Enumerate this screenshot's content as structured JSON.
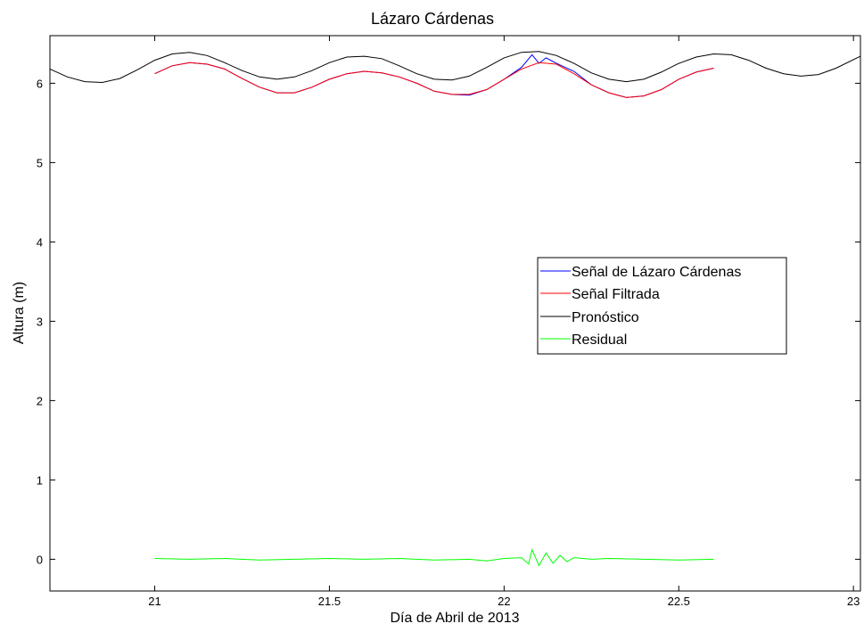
{
  "chart_data": {
    "type": "line",
    "title": "Lázaro Cárdenas",
    "xlabel": "Día de Abril de 2013",
    "ylabel": "Altura (m)",
    "xlim": [
      20.7,
      23.02
    ],
    "ylim": [
      -0.4,
      6.6
    ],
    "xticks": [
      21,
      21.5,
      22,
      22.5,
      23
    ],
    "xtick_labels": [
      "21",
      "21.5",
      "22",
      "22.5",
      "23"
    ],
    "yticks": [
      0,
      1,
      2,
      3,
      4,
      5,
      6
    ],
    "ytick_labels": [
      "0",
      "1",
      "2",
      "3",
      "4",
      "5",
      "6"
    ],
    "grid": false,
    "legend_position": "right",
    "colors": {
      "signal": "#0000ff",
      "filtered": "#ff0000",
      "forecast": "#000000",
      "residual": "#00ff00"
    },
    "series": [
      {
        "name": "Señal de Lázaro Cárdenas",
        "color": "#0000ff",
        "x": [
          21.0,
          21.05,
          21.1,
          21.15,
          21.2,
          21.25,
          21.3,
          21.35,
          21.4,
          21.45,
          21.5,
          21.55,
          21.6,
          21.65,
          21.7,
          21.75,
          21.8,
          21.85,
          21.9,
          21.95,
          22.0,
          22.05,
          22.08,
          22.1,
          22.12,
          22.15,
          22.2,
          22.25,
          22.3,
          22.35,
          22.4,
          22.45,
          22.5,
          22.55,
          22.6
        ],
        "y": [
          6.12,
          6.22,
          6.26,
          6.24,
          6.18,
          6.06,
          5.95,
          5.88,
          5.88,
          5.95,
          6.05,
          6.12,
          6.15,
          6.13,
          6.08,
          6.0,
          5.9,
          5.86,
          5.85,
          5.92,
          6.05,
          6.2,
          6.36,
          6.25,
          6.32,
          6.25,
          6.15,
          5.98,
          5.88,
          5.82,
          5.84,
          5.92,
          6.05,
          6.14,
          6.19
        ]
      },
      {
        "name": "Señal Filtrada",
        "color": "#ff0000",
        "x": [
          21.0,
          21.05,
          21.1,
          21.15,
          21.2,
          21.25,
          21.3,
          21.35,
          21.4,
          21.45,
          21.5,
          21.55,
          21.6,
          21.65,
          21.7,
          21.75,
          21.8,
          21.85,
          21.9,
          21.95,
          22.0,
          22.05,
          22.1,
          22.15,
          22.2,
          22.25,
          22.3,
          22.35,
          22.4,
          22.45,
          22.5,
          22.55,
          22.6
        ],
        "y": [
          6.12,
          6.22,
          6.26,
          6.24,
          6.18,
          6.06,
          5.95,
          5.88,
          5.88,
          5.95,
          6.05,
          6.12,
          6.15,
          6.13,
          6.08,
          6.0,
          5.9,
          5.86,
          5.86,
          5.92,
          6.05,
          6.18,
          6.26,
          6.24,
          6.12,
          5.98,
          5.88,
          5.82,
          5.84,
          5.92,
          6.05,
          6.14,
          6.19
        ]
      },
      {
        "name": "Pronóstico",
        "color": "#000000",
        "x": [
          20.7,
          20.75,
          20.8,
          20.85,
          20.9,
          20.95,
          21.0,
          21.05,
          21.1,
          21.15,
          21.2,
          21.25,
          21.3,
          21.35,
          21.4,
          21.45,
          21.5,
          21.55,
          21.6,
          21.65,
          21.7,
          21.75,
          21.8,
          21.85,
          21.9,
          21.95,
          22.0,
          22.05,
          22.1,
          22.15,
          22.2,
          22.25,
          22.3,
          22.35,
          22.4,
          22.45,
          22.5,
          22.55,
          22.6,
          22.65,
          22.7,
          22.75,
          22.8,
          22.85,
          22.9,
          22.95,
          23.02
        ],
        "y": [
          6.18,
          6.08,
          6.02,
          6.01,
          6.06,
          6.17,
          6.29,
          6.37,
          6.39,
          6.35,
          6.26,
          6.16,
          6.08,
          6.05,
          6.08,
          6.16,
          6.26,
          6.33,
          6.34,
          6.31,
          6.22,
          6.12,
          6.05,
          6.04,
          6.09,
          6.2,
          6.32,
          6.39,
          6.4,
          6.35,
          6.25,
          6.13,
          6.05,
          6.02,
          6.05,
          6.14,
          6.25,
          6.33,
          6.37,
          6.36,
          6.29,
          6.19,
          6.12,
          6.09,
          6.11,
          6.19,
          6.34
        ]
      },
      {
        "name": "Residual",
        "color": "#00ff00",
        "x": [
          21.0,
          21.1,
          21.2,
          21.3,
          21.4,
          21.5,
          21.6,
          21.7,
          21.8,
          21.9,
          21.95,
          22.0,
          22.05,
          22.07,
          22.08,
          22.1,
          22.12,
          22.14,
          22.16,
          22.18,
          22.2,
          22.25,
          22.3,
          22.4,
          22.5,
          22.6
        ],
        "y": [
          0.01,
          0.0,
          0.01,
          -0.01,
          0.0,
          0.01,
          0.0,
          0.01,
          -0.01,
          0.0,
          -0.02,
          0.01,
          0.02,
          -0.06,
          0.12,
          -0.08,
          0.08,
          -0.05,
          0.05,
          -0.03,
          0.02,
          0.0,
          0.01,
          0.0,
          -0.01,
          0.0
        ]
      }
    ]
  }
}
